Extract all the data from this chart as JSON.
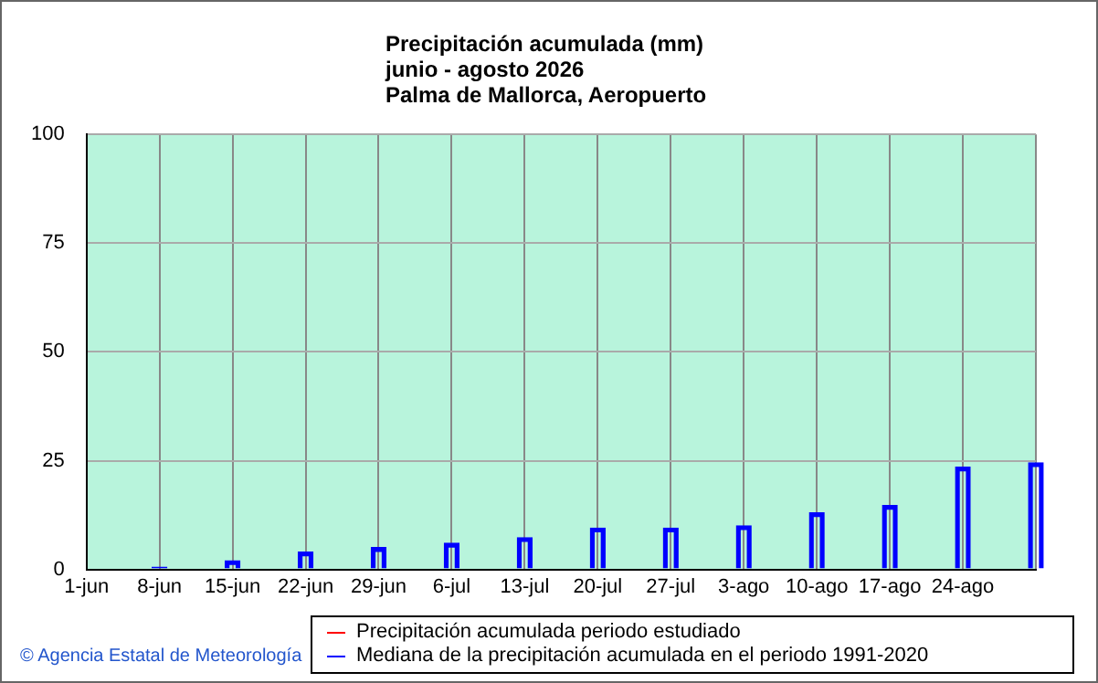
{
  "chart_data": {
    "type": "bar",
    "title": "Precipitación acumulada (mm)",
    "subtitle": "junio - agosto 2026\nPalma de Mallorca, Aeropuerto",
    "categories": [
      "1-jun",
      "8-jun",
      "15-jun",
      "22-jun",
      "29-jun",
      "6-jul",
      "13-jul",
      "20-jul",
      "27-jul",
      "3-ago",
      "10-ago",
      "17-ago",
      "24-ago",
      null
    ],
    "series": [
      {
        "name": "Precipitación acumulada periodo estudiado",
        "type": "line",
        "color": "#ff0000",
        "values": [
          null,
          null,
          null,
          null,
          null,
          null,
          null,
          null,
          null,
          null,
          null,
          null,
          null,
          null
        ]
      },
      {
        "name": "Mediana de la precipitación acumulada en el periodo 1991-2020",
        "color": "#0000ff",
        "values": [
          null,
          0.5,
          2,
          4,
          5,
          6,
          7.3,
          9.5,
          9.5,
          10,
          13,
          14.7,
          23.5,
          24.5
        ]
      }
    ],
    "ylim": [
      0,
      100
    ],
    "yticks": [
      0,
      25,
      50,
      75,
      100
    ],
    "grid": true,
    "legend": "bottom",
    "annotations": [
      "© Agencia Estatal de Meteorología"
    ]
  }
}
